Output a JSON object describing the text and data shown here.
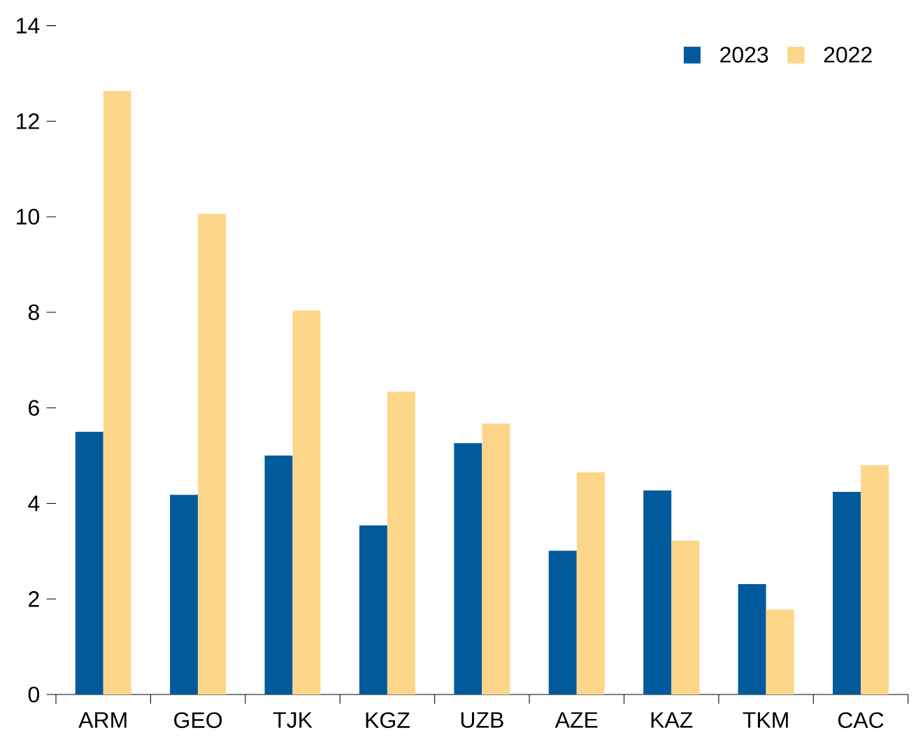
{
  "chart_data": {
    "type": "bar",
    "categories": [
      "ARM",
      "GEO",
      "TJK",
      "KGZ",
      "UZB",
      "AZE",
      "KAZ",
      "TKM",
      "CAC"
    ],
    "series": [
      {
        "name": "2023",
        "color": "#005a9c",
        "values": [
          5.5,
          4.18,
          5.0,
          3.54,
          5.26,
          3.01,
          4.27,
          2.31,
          4.24
        ]
      },
      {
        "name": "2022",
        "color": "#fdd68a",
        "values": [
          12.63,
          10.06,
          8.04,
          6.34,
          5.67,
          4.65,
          3.22,
          1.78,
          4.8
        ]
      }
    ],
    "ylim": [
      0,
      14
    ],
    "yticks": [
      0,
      2,
      4,
      6,
      8,
      10,
      12,
      14
    ],
    "grid": false,
    "legend": "top right"
  }
}
